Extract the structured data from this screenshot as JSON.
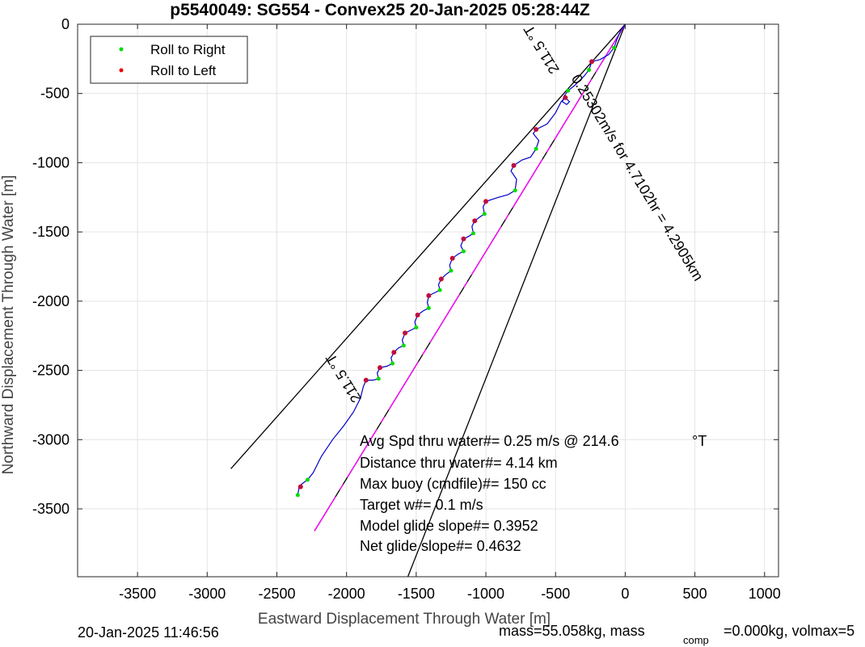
{
  "chart_data": {
    "type": "line",
    "title": "p5540049: SG554 - Convex25 20-Jan-2025 05:28:44Z",
    "xlabel": "Eastward Displacement Through Water [m]",
    "ylabel": "Northward Displacement Through Water [m]",
    "xlim": [
      -3930,
      1100
    ],
    "ylim": [
      -3990,
      0
    ],
    "xticks": [
      -3500,
      -3000,
      -2500,
      -2000,
      -1500,
      -1000,
      -500,
      0,
      500,
      1000
    ],
    "yticks": [
      0,
      -500,
      -1000,
      -1500,
      -2000,
      -2500,
      -3000,
      -3500
    ],
    "grid": true,
    "legend": {
      "placement": "top-left",
      "entries": [
        {
          "label": "Roll to Right",
          "color": "#00dd00"
        },
        {
          "label": "Roll to Left",
          "color": "#ee0000"
        }
      ]
    },
    "track": {
      "color": "#0000cc",
      "points": [
        [
          0,
          0
        ],
        [
          -30,
          -40
        ],
        [
          -60,
          -110
        ],
        [
          -80,
          -170
        ],
        [
          -120,
          -220
        ],
        [
          -180,
          -255
        ],
        [
          -240,
          -270
        ],
        [
          -260,
          -330
        ],
        [
          -300,
          -380
        ],
        [
          -360,
          -440
        ],
        [
          -410,
          -480
        ],
        [
          -440,
          -520
        ],
        [
          -450,
          -560
        ],
        [
          -420,
          -580
        ],
        [
          -400,
          -560
        ],
        [
          -430,
          -530
        ],
        [
          -460,
          -560
        ],
        [
          -500,
          -640
        ],
        [
          -560,
          -720
        ],
        [
          -640,
          -760
        ],
        [
          -660,
          -790
        ],
        [
          -620,
          -840
        ],
        [
          -640,
          -900
        ],
        [
          -680,
          -960
        ],
        [
          -740,
          -980
        ],
        [
          -800,
          -1020
        ],
        [
          -820,
          -1060
        ],
        [
          -780,
          -1120
        ],
        [
          -790,
          -1200
        ],
        [
          -840,
          -1230
        ],
        [
          -910,
          -1250
        ],
        [
          -1000,
          -1280
        ],
        [
          -1020,
          -1320
        ],
        [
          -1010,
          -1370
        ],
        [
          -1040,
          -1390
        ],
        [
          -1080,
          -1420
        ],
        [
          -1100,
          -1460
        ],
        [
          -1090,
          -1510
        ],
        [
          -1120,
          -1530
        ],
        [
          -1160,
          -1550
        ],
        [
          -1180,
          -1600
        ],
        [
          -1160,
          -1640
        ],
        [
          -1200,
          -1660
        ],
        [
          -1240,
          -1690
        ],
        [
          -1260,
          -1740
        ],
        [
          -1250,
          -1780
        ],
        [
          -1290,
          -1810
        ],
        [
          -1320,
          -1840
        ],
        [
          -1340,
          -1880
        ],
        [
          -1330,
          -1920
        ],
        [
          -1370,
          -1940
        ],
        [
          -1410,
          -1960
        ],
        [
          -1420,
          -2010
        ],
        [
          -1410,
          -2050
        ],
        [
          -1450,
          -2070
        ],
        [
          -1490,
          -2100
        ],
        [
          -1510,
          -2150
        ],
        [
          -1500,
          -2190
        ],
        [
          -1540,
          -2210
        ],
        [
          -1580,
          -2230
        ],
        [
          -1600,
          -2280
        ],
        [
          -1590,
          -2320
        ],
        [
          -1630,
          -2340
        ],
        [
          -1660,
          -2370
        ],
        [
          -1680,
          -2410
        ],
        [
          -1670,
          -2450
        ],
        [
          -1710,
          -2470
        ],
        [
          -1760,
          -2480
        ],
        [
          -1780,
          -2520
        ],
        [
          -1770,
          -2560
        ],
        [
          -1810,
          -2570
        ],
        [
          -1860,
          -2570
        ],
        [
          -1880,
          -2620
        ],
        [
          -1900,
          -2700
        ],
        [
          -1950,
          -2800
        ],
        [
          -2020,
          -2900
        ],
        [
          -2100,
          -3000
        ],
        [
          -2180,
          -3120
        ],
        [
          -2240,
          -3240
        ],
        [
          -2280,
          -3290
        ],
        [
          -2320,
          -3320
        ],
        [
          -2340,
          -3340
        ],
        [
          -2350,
          -3400
        ]
      ]
    },
    "roll_right_points": [
      [
        -80,
        -170
      ],
      [
        -260,
        -330
      ],
      [
        -410,
        -480
      ],
      [
        -640,
        -900
      ],
      [
        -790,
        -1200
      ],
      [
        -1010,
        -1370
      ],
      [
        -1090,
        -1510
      ],
      [
        -1160,
        -1640
      ],
      [
        -1250,
        -1780
      ],
      [
        -1330,
        -1920
      ],
      [
        -1410,
        -2050
      ],
      [
        -1500,
        -2190
      ],
      [
        -1590,
        -2320
      ],
      [
        -1670,
        -2450
      ],
      [
        -1770,
        -2560
      ],
      [
        -2280,
        -3290
      ],
      [
        -2350,
        -3400
      ]
    ],
    "roll_left_points": [
      [
        -240,
        -270
      ],
      [
        -430,
        -530
      ],
      [
        -640,
        -760
      ],
      [
        -800,
        -1020
      ],
      [
        -1000,
        -1280
      ],
      [
        -1080,
        -1420
      ],
      [
        -1160,
        -1550
      ],
      [
        -1240,
        -1690
      ],
      [
        -1320,
        -1840
      ],
      [
        -1410,
        -1960
      ],
      [
        -1490,
        -2100
      ],
      [
        -1580,
        -2230
      ],
      [
        -1660,
        -2370
      ],
      [
        -1760,
        -2480
      ],
      [
        -1860,
        -2570
      ],
      [
        -2330,
        -3340
      ]
    ],
    "cone_lines": [
      {
        "color": "#000000",
        "points": [
          [
            0,
            0
          ],
          [
            -2830,
            -3210
          ]
        ]
      },
      {
        "color": "#000000",
        "points": [
          [
            0,
            0
          ],
          [
            -1560,
            -3990
          ]
        ]
      },
      {
        "color": "#000000",
        "points": [
          [
            0,
            0
          ],
          [
            -2230,
            -3660
          ]
        ]
      }
    ],
    "heading_line": {
      "color": "#ff00ff",
      "points": [
        [
          0,
          0
        ],
        [
          -2230,
          -3660
        ]
      ]
    },
    "annotations": [
      {
        "id": "line-speed",
        "text": "0.25302m/s for 4.7102hr = 4.2905km",
        "x": -390,
        "y": -390,
        "angle": 58.6
      },
      {
        "id": "heading-upper",
        "text": "211.5 °T",
        "x": -470,
        "y": -330,
        "angle": 238.6
      },
      {
        "id": "heading-lower",
        "text": "211.5 °T",
        "x": -1890,
        "y": -2705,
        "angle": 238.6
      }
    ],
    "stats_lines": [
      "Avg Spd thru water#=  0.25 m/s @ 214.6",
      "Distance thru water#=  4.14 km",
      "Max buoy (cmdfile)#= 150 cc",
      "Target w#= 0.1 m/s",
      "Model glide slope#= 0.3952",
      "Net glide slope#= 0.4632"
    ],
    "stats_unit": "°T",
    "footer": {
      "date": "20-Jan-2025 11:46:56",
      "mass_prefix": "mass=55.058kg, mass",
      "mass_sub": "comp",
      "mass_suffix": "=0.000kg, volmax=5"
    }
  }
}
